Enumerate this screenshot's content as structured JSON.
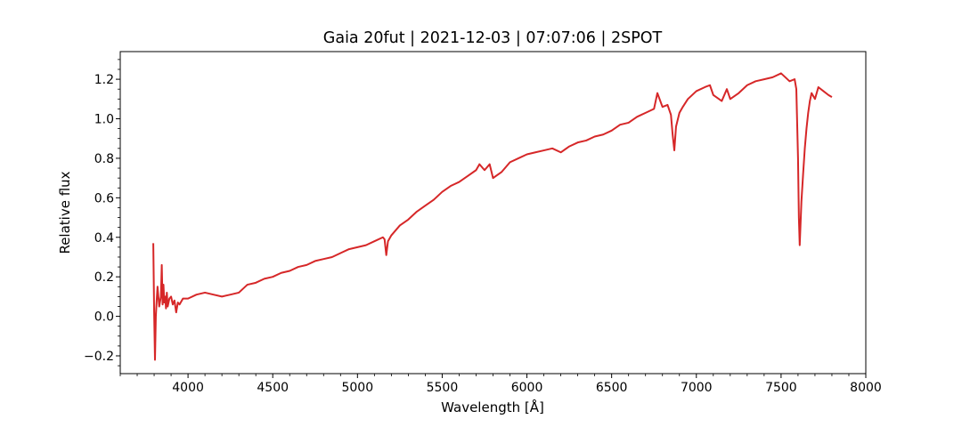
{
  "chart_data": {
    "type": "line",
    "title": "Gaia 20fut | 2021-12-03 | 07:07:06 | 2SPOT",
    "xlabel": "Wavelength [Å]",
    "ylabel": "Relative flux",
    "xlim": [
      3600,
      8000
    ],
    "ylim": [
      -0.29,
      1.34
    ],
    "grid": false,
    "legend": "none",
    "x_ticks": [
      4000,
      4500,
      5000,
      5500,
      6000,
      6500,
      7000,
      7500,
      8000
    ],
    "x_tick_labels": [
      "4000",
      "4500",
      "5000",
      "5500",
      "6000",
      "6500",
      "7000",
      "7500",
      "8000"
    ],
    "x_minor_step": 100,
    "y_ticks": [
      -0.2,
      0.0,
      0.2,
      0.4,
      0.6,
      0.8,
      1.0,
      1.2
    ],
    "y_tick_labels": [
      "−0.2",
      "0.0",
      "0.2",
      "0.4",
      "0.6",
      "0.8",
      "1.0",
      "1.2"
    ],
    "y_minor_step": 0.05,
    "series": [
      {
        "color": "#d62728",
        "x": [
          3795,
          3800,
          3805,
          3810,
          3815,
          3820,
          3830,
          3840,
          3845,
          3850,
          3855,
          3860,
          3865,
          3870,
          3875,
          3880,
          3890,
          3900,
          3910,
          3920,
          3930,
          3940,
          3950,
          3970,
          4000,
          4050,
          4100,
          4150,
          4200,
          4250,
          4300,
          4350,
          4400,
          4450,
          4500,
          4550,
          4600,
          4650,
          4700,
          4750,
          4800,
          4850,
          4900,
          4950,
          5000,
          5050,
          5100,
          5150,
          5160,
          5170,
          5180,
          5200,
          5250,
          5300,
          5350,
          5400,
          5450,
          5500,
          5550,
          5600,
          5650,
          5700,
          5720,
          5750,
          5780,
          5800,
          5850,
          5900,
          5950,
          6000,
          6050,
          6100,
          6150,
          6200,
          6250,
          6300,
          6350,
          6400,
          6450,
          6500,
          6550,
          6600,
          6650,
          6700,
          6750,
          6770,
          6800,
          6830,
          6850,
          6860,
          6870,
          6880,
          6900,
          6920,
          6950,
          7000,
          7050,
          7080,
          7100,
          7150,
          7180,
          7200,
          7250,
          7300,
          7350,
          7400,
          7450,
          7500,
          7550,
          7580,
          7590,
          7600,
          7605,
          7610,
          7620,
          7630,
          7640,
          7650,
          7660,
          7670,
          7680,
          7700,
          7720,
          7750,
          7780,
          7800
        ],
        "y": [
          0.37,
          0.02,
          -0.22,
          0.0,
          0.08,
          0.15,
          0.05,
          0.1,
          0.26,
          0.06,
          0.16,
          0.07,
          0.1,
          0.04,
          0.12,
          0.05,
          0.09,
          0.1,
          0.06,
          0.08,
          0.02,
          0.07,
          0.06,
          0.09,
          0.09,
          0.11,
          0.12,
          0.11,
          0.1,
          0.11,
          0.12,
          0.16,
          0.17,
          0.19,
          0.2,
          0.22,
          0.23,
          0.25,
          0.26,
          0.28,
          0.29,
          0.3,
          0.32,
          0.34,
          0.35,
          0.36,
          0.38,
          0.4,
          0.39,
          0.31,
          0.38,
          0.41,
          0.46,
          0.49,
          0.53,
          0.56,
          0.59,
          0.63,
          0.66,
          0.68,
          0.71,
          0.74,
          0.77,
          0.74,
          0.77,
          0.7,
          0.73,
          0.78,
          0.8,
          0.82,
          0.83,
          0.84,
          0.85,
          0.83,
          0.86,
          0.88,
          0.89,
          0.91,
          0.92,
          0.94,
          0.97,
          0.98,
          1.01,
          1.03,
          1.05,
          1.13,
          1.06,
          1.07,
          1.02,
          0.92,
          0.84,
          0.96,
          1.03,
          1.06,
          1.1,
          1.14,
          1.16,
          1.17,
          1.12,
          1.09,
          1.15,
          1.1,
          1.13,
          1.17,
          1.19,
          1.2,
          1.21,
          1.23,
          1.19,
          1.2,
          1.15,
          0.8,
          0.5,
          0.36,
          0.58,
          0.72,
          0.85,
          0.95,
          1.03,
          1.09,
          1.13,
          1.1,
          1.16,
          1.14,
          1.12,
          1.11
        ]
      }
    ]
  }
}
